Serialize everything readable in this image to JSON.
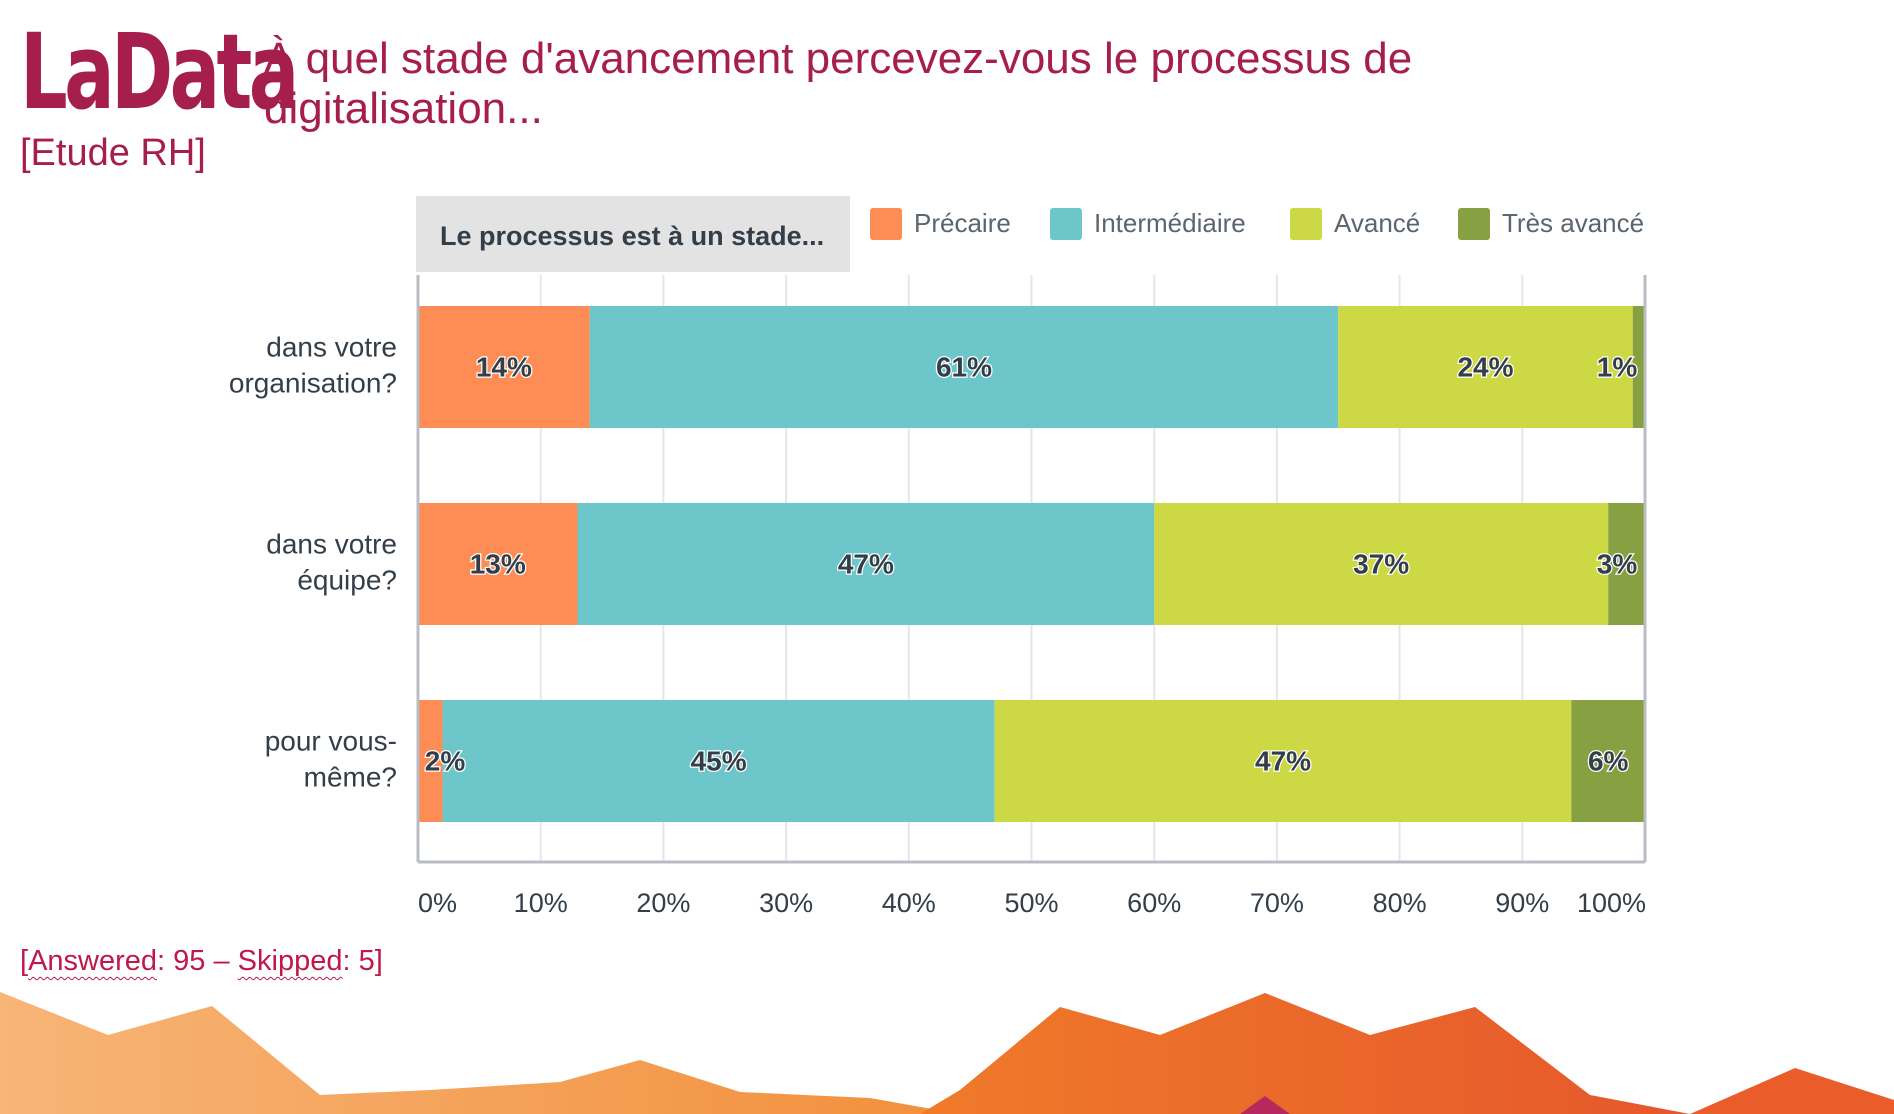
{
  "logo": {
    "brand": "LaData",
    "subtitle": "[Etude RH]"
  },
  "title": "À quel stade d'avancement percevez-vous le processus de digitalisation...",
  "colors": {
    "brand": "#a61e4d",
    "footer_text": "#c0184a",
    "precaire": "#fd8c55",
    "intermediaire": "#6dc7ca",
    "avance": "#cdd845",
    "tres_avance": "#86a042",
    "axis_text": "#333e48",
    "grid": "#e4e6ea",
    "legend_box": "#e3e3e3"
  },
  "chart_data": {
    "type": "bar",
    "orientation": "horizontal",
    "stacked": true,
    "legend_title": "Le processus est à un stade...",
    "categories": [
      "dans votre organisation?",
      "dans votre équipe?",
      "pour vous-même?"
    ],
    "category_lines": [
      [
        "dans votre",
        "organisation?"
      ],
      [
        "dans votre",
        "équipe?"
      ],
      [
        "pour vous-",
        "même?"
      ]
    ],
    "series": [
      {
        "name": "Précaire",
        "color_key": "precaire",
        "values": [
          14,
          13,
          2
        ]
      },
      {
        "name": "Intermédiaire",
        "color_key": "intermediaire",
        "values": [
          61,
          47,
          45
        ]
      },
      {
        "name": "Avancé",
        "color_key": "avance",
        "values": [
          24,
          37,
          47
        ]
      },
      {
        "name": "Très avancé",
        "color_key": "tres_avance",
        "values": [
          1,
          3,
          6
        ]
      }
    ],
    "data_labels": [
      [
        "14%",
        "61%",
        "24%",
        "1%"
      ],
      [
        "13%",
        "47%",
        "37%",
        "3%"
      ],
      [
        "2%",
        "45%",
        "47%",
        "6%"
      ]
    ],
    "xlim": [
      0,
      100
    ],
    "xticks": [
      0,
      10,
      20,
      30,
      40,
      50,
      60,
      70,
      80,
      90,
      100
    ],
    "xtick_labels": [
      "0%",
      "10%",
      "20%",
      "30%",
      "40%",
      "50%",
      "60%",
      "70%",
      "80%",
      "90%",
      "100%"
    ],
    "grid": true
  },
  "footer": {
    "prefix": "[",
    "answered": "Answered",
    "answered_value": ": 95 – ",
    "skipped": "Skipped",
    "skipped_value": ": 5]"
  }
}
